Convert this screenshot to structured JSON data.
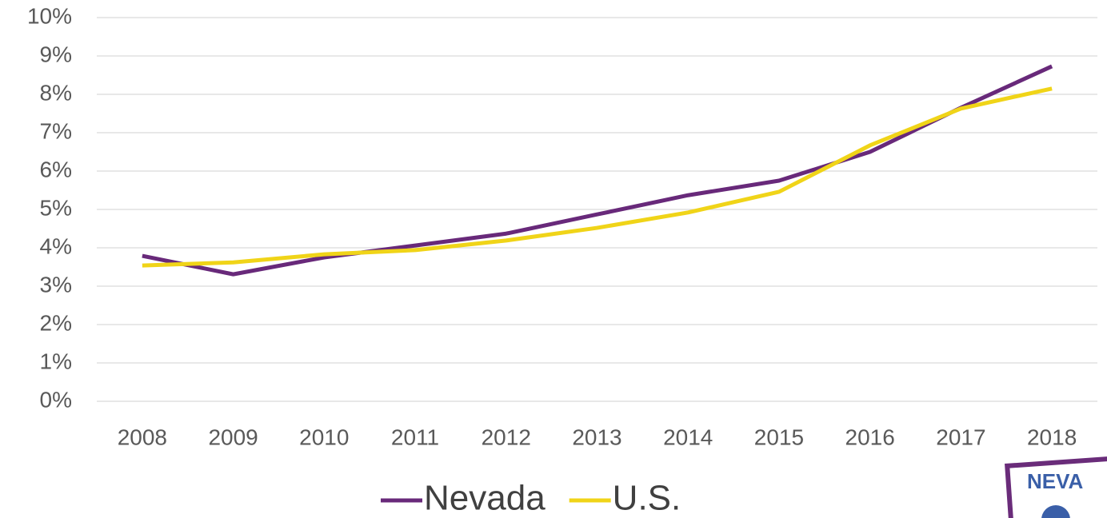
{
  "chart_data": {
    "type": "line",
    "categories": [
      "2008",
      "2009",
      "2010",
      "2011",
      "2012",
      "2013",
      "2014",
      "2015",
      "2016",
      "2017",
      "2018"
    ],
    "series": [
      {
        "name": "Nevada",
        "color": "#68297a",
        "values": [
          3.79,
          3.31,
          3.75,
          4.06,
          4.37,
          4.87,
          5.37,
          5.75,
          6.5,
          7.65,
          8.73
        ]
      },
      {
        "name": "U.S.",
        "color": "#f0d418",
        "values": [
          3.54,
          3.62,
          3.83,
          3.94,
          4.19,
          4.52,
          4.92,
          5.46,
          6.67,
          7.63,
          8.15
        ]
      }
    ],
    "ylim": [
      0,
      10
    ],
    "yticks": [
      {
        "value": 0,
        "label": "0%"
      },
      {
        "value": 1,
        "label": "1%"
      },
      {
        "value": 2,
        "label": "2%"
      },
      {
        "value": 3,
        "label": "3%"
      },
      {
        "value": 4,
        "label": "4%"
      },
      {
        "value": 5,
        "label": "5%"
      },
      {
        "value": 6,
        "label": "6%"
      },
      {
        "value": 7,
        "label": "7%"
      },
      {
        "value": 8,
        "label": "8%"
      },
      {
        "value": 9,
        "label": "9%"
      },
      {
        "value": 10,
        "label": "10%"
      }
    ],
    "grid": true,
    "legend": "bottom"
  },
  "logo_text": "NEVA"
}
